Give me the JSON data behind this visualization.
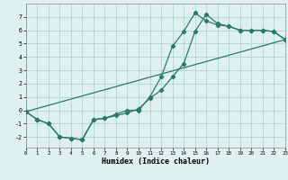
{
  "xlabel": "Humidex (Indice chaleur)",
  "background_color": "#dff0f0",
  "grid_color": "#b8d8d8",
  "line_color": "#2a7a6a",
  "line1_x": [
    0,
    1,
    2,
    3,
    4,
    5,
    6,
    7,
    8,
    9,
    10,
    11,
    12,
    13,
    14,
    15,
    16,
    17,
    18,
    19,
    20,
    21,
    22,
    23
  ],
  "line1_y": [
    -0.1,
    -0.7,
    -1.0,
    -2.0,
    -2.1,
    -2.2,
    -0.7,
    -0.6,
    -0.3,
    0.0,
    0.0,
    1.0,
    2.5,
    4.8,
    5.9,
    7.3,
    6.7,
    6.4,
    6.3,
    6.0,
    6.0,
    6.0,
    5.9,
    5.3
  ],
  "line2_x": [
    0,
    1,
    2,
    3,
    4,
    5,
    6,
    7,
    8,
    9,
    10,
    11,
    12,
    13,
    14,
    15,
    16,
    17,
    18,
    19,
    20,
    21,
    22,
    23
  ],
  "line2_y": [
    -0.1,
    -0.7,
    -1.0,
    -2.0,
    -2.1,
    -2.2,
    -0.7,
    -0.6,
    -0.4,
    -0.2,
    0.1,
    0.9,
    1.5,
    2.5,
    3.5,
    5.9,
    7.2,
    6.5,
    6.3,
    6.0,
    6.0,
    6.0,
    5.9,
    5.3
  ],
  "line3_x": [
    0,
    23
  ],
  "line3_y": [
    -0.1,
    5.3
  ],
  "ylim": [
    -2.8,
    8.0
  ],
  "yticks": [
    -2,
    -1,
    0,
    1,
    2,
    3,
    4,
    5,
    6,
    7
  ],
  "xticks": [
    0,
    1,
    2,
    3,
    4,
    5,
    6,
    7,
    8,
    9,
    10,
    11,
    12,
    13,
    14,
    15,
    16,
    17,
    18,
    19,
    20,
    21,
    22,
    23
  ],
  "xlim": [
    0,
    23
  ]
}
